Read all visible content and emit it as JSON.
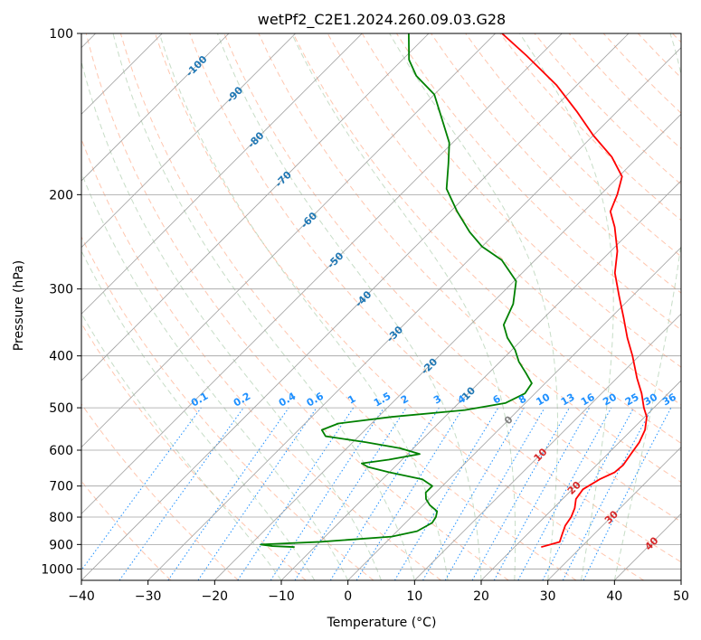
{
  "chart_data": {
    "type": "skew-t",
    "title": "wetPf2_C2E1.2024.260.09.03.G28",
    "xlabel": "Temperature (°C)",
    "ylabel": "Pressure (hPa)",
    "xlim": [
      -40,
      50
    ],
    "ylim": [
      1050,
      100
    ],
    "x_ticks": [
      -40,
      -30,
      -20,
      -10,
      0,
      10,
      20,
      30,
      40,
      50
    ],
    "x_tick_labels": [
      "−40",
      "−30",
      "−20",
      "−10",
      "0",
      "10",
      "20",
      "30",
      "40",
      "50"
    ],
    "y_ticks": [
      100,
      200,
      300,
      400,
      500,
      600,
      700,
      800,
      900,
      1000
    ],
    "y_tick_labels": [
      "100",
      "200",
      "300",
      "400",
      "500",
      "600",
      "700",
      "800",
      "900",
      "1000"
    ],
    "grid": true,
    "colors": {
      "temperature": "#ff0000",
      "dewpoint": "#008000",
      "isotherm": "#a0a0a0",
      "dry_adiabat": "#ffa07a",
      "moist_adiabat": "#8fbc8f",
      "mixing_ratio": "#1e90ff",
      "isotherm_label_cold": "#1f77b4",
      "isotherm_label_zero": "#808080",
      "isotherm_label_warm": "#d62728"
    },
    "series": [
      {
        "key": "temperature",
        "points": [
          {
            "p": 910,
            "t": 24.0
          },
          {
            "p": 890,
            "t": 26.0
          },
          {
            "p": 860,
            "t": 25.2
          },
          {
            "p": 830,
            "t": 24.4
          },
          {
            "p": 800,
            "t": 24.0
          },
          {
            "p": 770,
            "t": 23.2
          },
          {
            "p": 740,
            "t": 22.0
          },
          {
            "p": 710,
            "t": 21.6
          },
          {
            "p": 680,
            "t": 22.6
          },
          {
            "p": 660,
            "t": 23.8
          },
          {
            "p": 640,
            "t": 24.0
          },
          {
            "p": 610,
            "t": 23.5
          },
          {
            "p": 580,
            "t": 23.0
          },
          {
            "p": 550,
            "t": 22.0
          },
          {
            "p": 520,
            "t": 20.3
          },
          {
            "p": 500,
            "t": 18.5
          },
          {
            "p": 470,
            "t": 16.0
          },
          {
            "p": 440,
            "t": 13.0
          },
          {
            "p": 400,
            "t": 9.0
          },
          {
            "p": 370,
            "t": 5.5
          },
          {
            "p": 340,
            "t": 2.0
          },
          {
            "p": 310,
            "t": -1.9
          },
          {
            "p": 280,
            "t": -6.1
          },
          {
            "p": 255,
            "t": -9.0
          },
          {
            "p": 230,
            "t": -13.0
          },
          {
            "p": 215,
            "t": -16.0
          },
          {
            "p": 200,
            "t": -17.5
          },
          {
            "p": 185,
            "t": -19.5
          },
          {
            "p": 170,
            "t": -24.0
          },
          {
            "p": 155,
            "t": -30.0
          },
          {
            "p": 140,
            "t": -36.0
          },
          {
            "p": 125,
            "t": -43.0
          },
          {
            "p": 110,
            "t": -52.0
          },
          {
            "p": 100,
            "t": -59.0
          }
        ]
      },
      {
        "key": "dewpoint",
        "points": [
          {
            "p": 910,
            "t": -13.0
          },
          {
            "p": 906,
            "t": -16.5
          },
          {
            "p": 900,
            "t": -18.5
          },
          {
            "p": 890,
            "t": -10.0
          },
          {
            "p": 870,
            "t": 0.0
          },
          {
            "p": 850,
            "t": 3.0
          },
          {
            "p": 820,
            "t": 4.0
          },
          {
            "p": 800,
            "t": 3.7
          },
          {
            "p": 780,
            "t": 3.0
          },
          {
            "p": 760,
            "t": 1.0
          },
          {
            "p": 740,
            "t": -0.5
          },
          {
            "p": 720,
            "t": -1.5
          },
          {
            "p": 700,
            "t": -1.5
          },
          {
            "p": 680,
            "t": -4.0
          },
          {
            "p": 660,
            "t": -10.0
          },
          {
            "p": 645,
            "t": -14.0
          },
          {
            "p": 635,
            "t": -15.5
          },
          {
            "p": 625,
            "t": -12.0
          },
          {
            "p": 610,
            "t": -8.2
          },
          {
            "p": 595,
            "t": -12.0
          },
          {
            "p": 580,
            "t": -18.0
          },
          {
            "p": 565,
            "t": -25.0
          },
          {
            "p": 550,
            "t": -26.5
          },
          {
            "p": 535,
            "t": -25.0
          },
          {
            "p": 520,
            "t": -18.0
          },
          {
            "p": 505,
            "t": -8.0
          },
          {
            "p": 490,
            "t": -3.0
          },
          {
            "p": 470,
            "t": -1.5
          },
          {
            "p": 450,
            "t": -2.0
          },
          {
            "p": 430,
            "t": -4.5
          },
          {
            "p": 410,
            "t": -7.2
          },
          {
            "p": 390,
            "t": -9.5
          },
          {
            "p": 370,
            "t": -12.5
          },
          {
            "p": 350,
            "t": -15.0
          },
          {
            "p": 320,
            "t": -16.7
          },
          {
            "p": 290,
            "t": -19.7
          },
          {
            "p": 265,
            "t": -25.0
          },
          {
            "p": 250,
            "t": -30.0
          },
          {
            "p": 235,
            "t": -34.0
          },
          {
            "p": 215,
            "t": -39.0
          },
          {
            "p": 195,
            "t": -44.0
          },
          {
            "p": 175,
            "t": -47.5
          },
          {
            "p": 160,
            "t": -50.5
          },
          {
            "p": 145,
            "t": -55.0
          },
          {
            "p": 130,
            "t": -60.0
          },
          {
            "p": 120,
            "t": -65.5
          },
          {
            "p": 112,
            "t": -69.0
          },
          {
            "p": 100,
            "t": -73.0
          }
        ]
      }
    ],
    "isotherm_labels": [
      {
        "text": "-100",
        "t": -100,
        "p": 115
      },
      {
        "text": "-90",
        "t": -90,
        "p": 130
      },
      {
        "text": "-80",
        "t": -80,
        "p": 158
      },
      {
        "text": "-70",
        "t": -70,
        "p": 187
      },
      {
        "text": "-60",
        "t": -60,
        "p": 223
      },
      {
        "text": "-50",
        "t": -50,
        "p": 265
      },
      {
        "text": "-40",
        "t": -40,
        "p": 313
      },
      {
        "text": "-30",
        "t": -30,
        "p": 364
      },
      {
        "text": "-20",
        "t": -20,
        "p": 418
      },
      {
        "text": "-10",
        "t": -10,
        "p": 473
      },
      {
        "text": "0",
        "t": 0,
        "p": 527
      },
      {
        "text": "10",
        "t": 10,
        "p": 612
      },
      {
        "text": "20",
        "t": 20,
        "p": 705
      },
      {
        "text": "30",
        "t": 30,
        "p": 800
      },
      {
        "text": "40",
        "t": 40,
        "p": 896
      }
    ],
    "mixing_ratio_lines": [
      0.1,
      0.2,
      0.4,
      0.6,
      1,
      1.5,
      2,
      3,
      4,
      6,
      8,
      10,
      13,
      16,
      20,
      25,
      30,
      36
    ],
    "mixing_ratio_labels": [
      "0.1",
      "0.2",
      "0.4",
      "0.6",
      "1",
      "1.5",
      "2",
      "3",
      "4",
      "6",
      "8",
      "10",
      "13",
      "16",
      "20",
      "25",
      "30",
      "36"
    ]
  }
}
